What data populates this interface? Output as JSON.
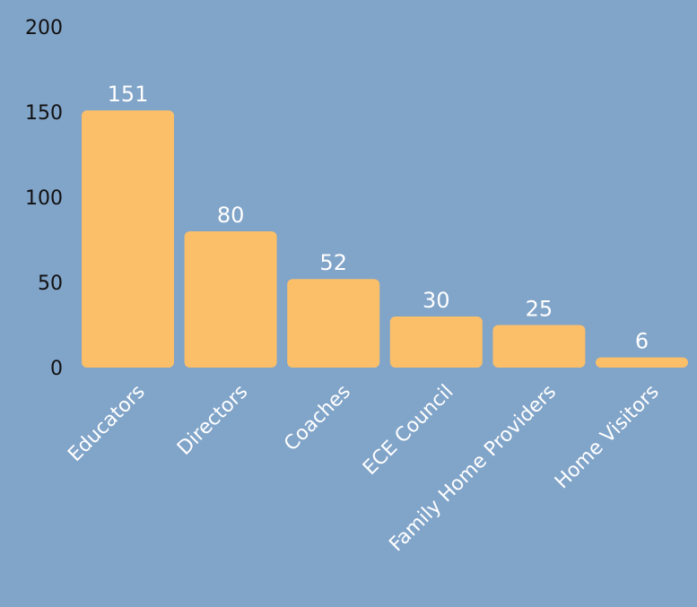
{
  "chart_data": {
    "type": "bar",
    "categories": [
      "Educators",
      "Directors",
      "Coaches",
      "ECE Council",
      "Family Home Providers",
      "Home Visitors"
    ],
    "values": [
      151,
      80,
      52,
      30,
      25,
      6
    ],
    "data_labels": [
      "151",
      "80",
      "52",
      "30",
      "25",
      "6"
    ],
    "y_ticks": [
      0,
      50,
      100,
      150,
      200
    ],
    "y_tick_labels": [
      "0",
      "50",
      "100",
      "150",
      "200"
    ],
    "ylim": [
      0,
      200
    ],
    "title": "",
    "xlabel": "",
    "ylabel": "",
    "grid": false,
    "legend": "none",
    "colors": {
      "background": "#81A4C9",
      "bar": "#FBBF69",
      "data_label": "#FFFFFF",
      "x_tick_label": "#FFFFFF",
      "y_tick_label": "#111111"
    }
  }
}
